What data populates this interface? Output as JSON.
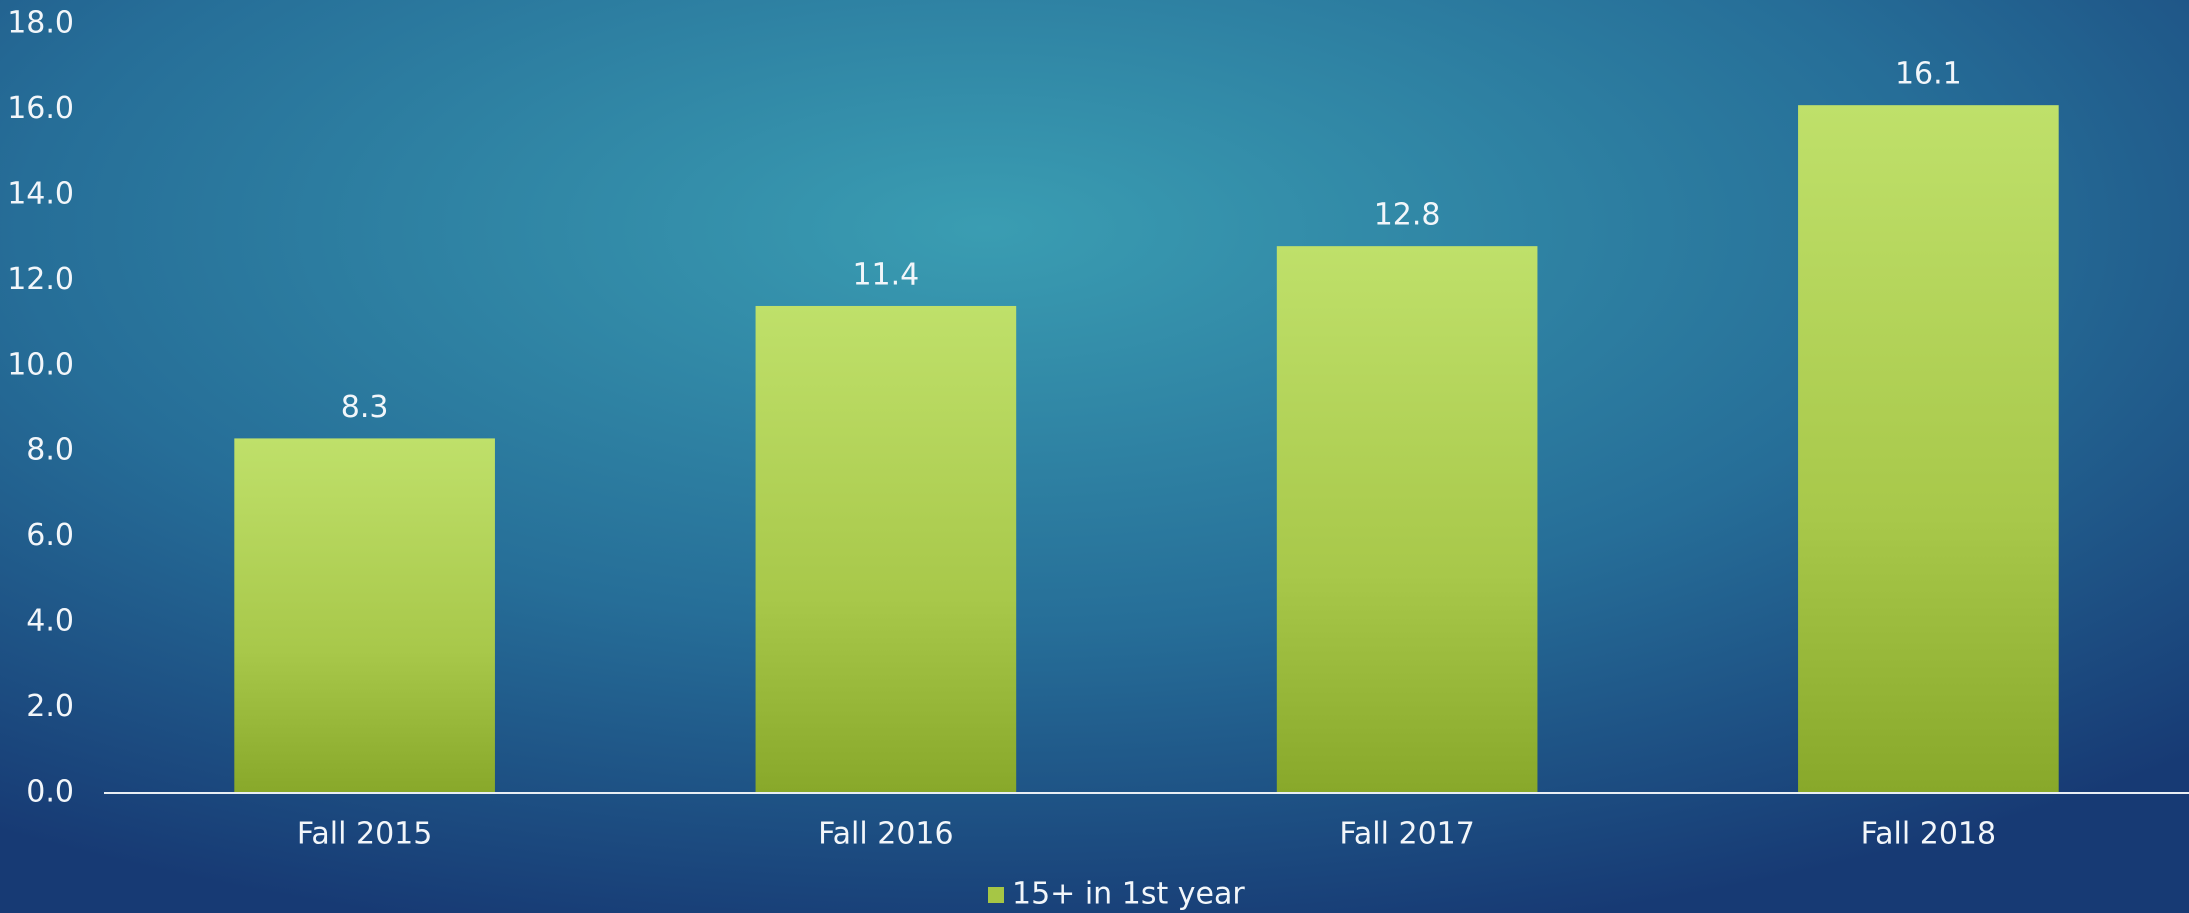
{
  "chart_data": {
    "type": "bar",
    "categories": [
      "Fall 2015",
      "Fall 2016",
      "Fall 2017",
      "Fall 2018"
    ],
    "series": [
      {
        "name": "15+ in 1st year",
        "color": "#a6c645",
        "values": [
          8.3,
          11.4,
          12.8,
          16.1
        ]
      }
    ],
    "ylim": [
      0,
      18
    ],
    "yticks": [
      {
        "value": 0,
        "label": "0.0"
      },
      {
        "value": 2,
        "label": "2.0"
      },
      {
        "value": 4,
        "label": "4.0"
      },
      {
        "value": 6,
        "label": "6.0"
      },
      {
        "value": 8,
        "label": "8.0"
      },
      {
        "value": 10,
        "label": "10.0"
      },
      {
        "value": 12,
        "label": "12.0"
      },
      {
        "value": 14,
        "label": "14.0"
      },
      {
        "value": 16,
        "label": "16.0"
      },
      {
        "value": 18,
        "label": "18.0"
      }
    ],
    "grid": false,
    "legend": "bottom"
  }
}
